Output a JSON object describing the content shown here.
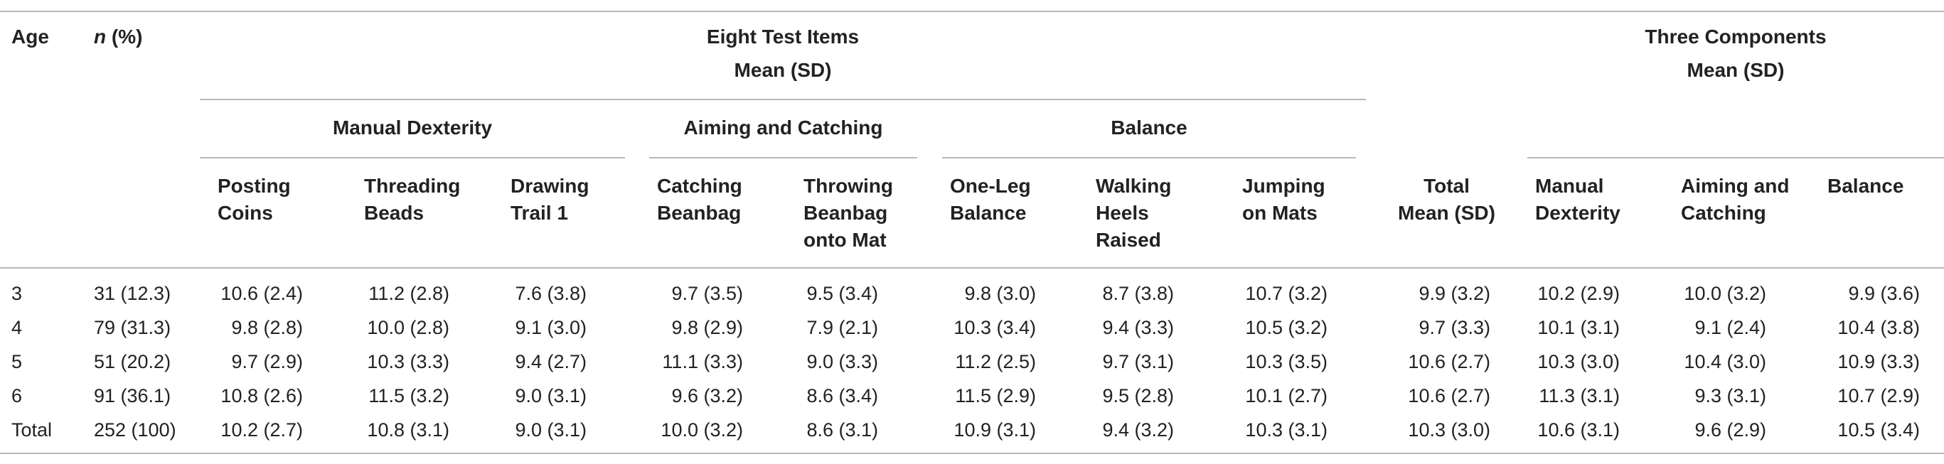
{
  "header": {
    "age": "Age",
    "n_italic": "n",
    "n_pct": " (%)",
    "eight_items": "Eight Test Items",
    "eight_items_sub": "Mean (SD)",
    "three_comp": "Three Components",
    "three_comp_sub": "Mean (SD)",
    "groups": {
      "manual": "Manual Dexterity",
      "aiming": "Aiming and Catching",
      "balance": "Balance"
    },
    "cols": {
      "posting": [
        "Posting",
        "Coins"
      ],
      "threading": [
        "Threading",
        "Beads"
      ],
      "drawing": [
        "Drawing",
        "Trail 1"
      ],
      "catching": [
        "Catching",
        "Beanbag"
      ],
      "throwing": [
        "Throwing",
        "Beanbag",
        "onto Mat"
      ],
      "oneleg": [
        "One-Leg",
        "Balance"
      ],
      "walking": [
        "Walking",
        "Heels",
        "Raised"
      ],
      "jumping": [
        "Jumping",
        "on Mats"
      ],
      "total": [
        "Total",
        "Mean (SD)"
      ],
      "c_manual": [
        "Manual",
        "Dexterity"
      ],
      "c_aiming": [
        "Aiming and",
        "Catching"
      ],
      "c_balance": [
        "Balance"
      ]
    }
  },
  "rows": [
    [
      "3",
      "31 (12.3)",
      "10.6 (2.4)",
      "11.2 (2.8)",
      "7.6 (3.8)",
      "9.7 (3.5)",
      "9.5 (3.4)",
      "9.8 (3.0)",
      "8.7 (3.8)",
      "10.7 (3.2)",
      "9.9 (3.2)",
      "10.2 (2.9)",
      "10.0 (3.2)",
      "9.9 (3.6)"
    ],
    [
      "4",
      "79 (31.3)",
      "9.8 (2.8)",
      "10.0 (2.8)",
      "9.1 (3.0)",
      "9.8 (2.9)",
      "7.9 (2.1)",
      "10.3 (3.4)",
      "9.4 (3.3)",
      "10.5 (3.2)",
      "9.7 (3.3)",
      "10.1 (3.1)",
      "9.1 (2.4)",
      "10.4 (3.8)"
    ],
    [
      "5",
      "51 (20.2)",
      "9.7 (2.9)",
      "10.3 (3.3)",
      "9.4 (2.7)",
      "11.1 (3.3)",
      "9.0 (3.3)",
      "11.2 (2.5)",
      "9.7 (3.1)",
      "10.3 (3.5)",
      "10.6 (2.7)",
      "10.3 (3.0)",
      "10.4 (3.0)",
      "10.9 (3.3)"
    ],
    [
      "6",
      "91 (36.1)",
      "10.8 (2.6)",
      "11.5 (3.2)",
      "9.0 (3.1)",
      "9.6 (3.2)",
      "8.6 (3.4)",
      "11.5 (2.9)",
      "9.5 (2.8)",
      "10.1 (2.7)",
      "10.6 (2.7)",
      "11.3 (3.1)",
      "9.3 (3.1)",
      "10.7 (2.9)"
    ],
    [
      "Total",
      "252 (100)",
      "10.2 (2.7)",
      "10.8 (3.1)",
      "9.0 (3.1)",
      "10.0 (3.2)",
      "8.6 (3.1)",
      "10.9 (3.1)",
      "9.4 (3.2)",
      "10.3 (3.1)",
      "10.3 (3.0)",
      "10.6 (3.1)",
      "9.6 (2.9)",
      "10.5 (3.4)"
    ]
  ]
}
